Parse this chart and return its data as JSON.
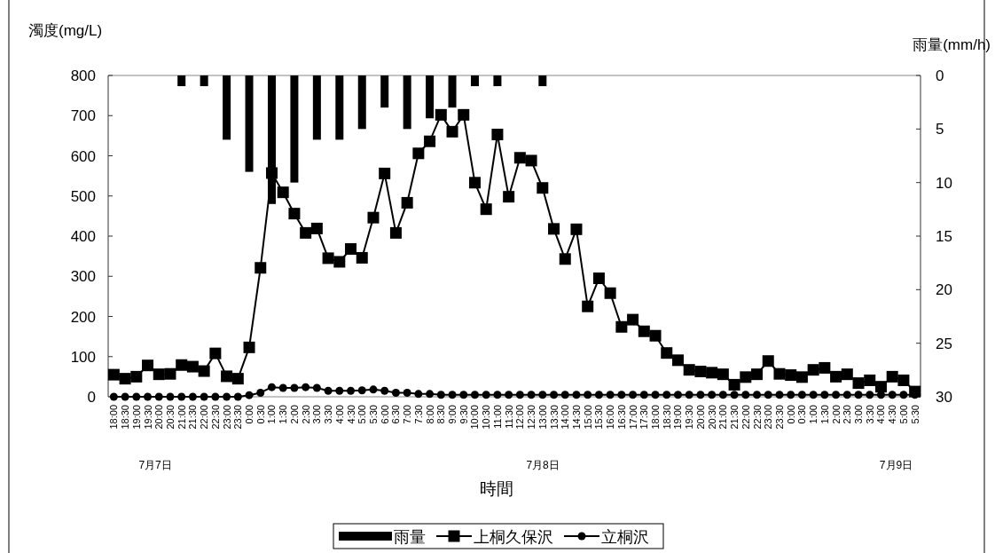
{
  "chart_data": {
    "type": "line",
    "ylabel": "濁度(mg/L)",
    "y2label": "雨量(mm/h)",
    "xlabel": "時間",
    "categories": [
      "18:00",
      "18:30",
      "19:00",
      "19:30",
      "20:00",
      "20:30",
      "21:00",
      "21:30",
      "22:00",
      "22:30",
      "23:00",
      "23:30",
      "0:00",
      "0:30",
      "1:00",
      "1:30",
      "2:00",
      "2:30",
      "3:00",
      "3:30",
      "4:00",
      "4:30",
      "5:00",
      "5:30",
      "6:00",
      "6:30",
      "7:00",
      "7:30",
      "8:00",
      "8:30",
      "9:00",
      "9:30",
      "10:00",
      "10:30",
      "11:00",
      "11:30",
      "12:00",
      "12:30",
      "13:00",
      "13:30",
      "14:00",
      "14:30",
      "15:00",
      "15:30",
      "16:00",
      "16:30",
      "17:00",
      "17:30",
      "18:00",
      "18:30",
      "19:00",
      "19:30",
      "20:00",
      "20:30",
      "21:00",
      "21:30",
      "22:00",
      "22:30",
      "23:00",
      "23:30",
      "0:00",
      "0:30",
      "1:00",
      "1:30",
      "2:00",
      "2:30",
      "3:00",
      "3:30",
      "4:00",
      "4:30",
      "5:00",
      "5:30"
    ],
    "series": [
      {
        "name": "雨量",
        "type": "bar",
        "axis": "y2",
        "color": "#000000",
        "values": [
          0,
          0,
          0,
          0,
          0,
          0,
          1,
          0,
          1,
          0,
          6,
          0,
          9,
          0,
          12,
          0,
          10,
          0,
          6,
          0,
          6,
          0,
          5,
          0,
          3,
          0,
          5,
          0,
          4,
          0,
          3,
          0,
          1,
          0,
          1,
          0,
          0,
          0,
          1,
          0,
          0,
          0,
          0,
          0,
          0,
          0,
          0,
          0,
          0,
          0,
          0,
          0,
          0,
          0,
          0,
          0,
          0,
          0,
          0,
          0,
          0,
          0,
          0,
          0,
          0,
          0,
          0,
          0,
          0,
          0,
          0,
          0
        ]
      },
      {
        "name": "上桐久保沢",
        "marker": "square",
        "color": "#000000",
        "values": [
          55,
          45,
          50,
          78,
          56,
          57,
          79,
          75,
          64,
          108,
          51,
          45,
          123,
          321,
          557,
          509,
          456,
          408,
          419,
          345,
          336,
          368,
          346,
          446,
          556,
          408,
          483,
          606,
          636,
          702,
          660,
          702,
          533,
          467,
          653,
          498,
          595,
          588,
          520,
          418,
          343,
          417,
          225,
          295,
          258,
          174,
          192,
          163,
          152,
          109,
          91,
          67,
          63,
          60,
          56,
          30,
          49,
          56,
          89,
          57,
          54,
          49,
          67,
          72,
          50,
          56,
          34,
          41,
          25,
          50,
          41,
          13
        ]
      },
      {
        "name": "立桐沢",
        "marker": "circle",
        "color": "#000000",
        "values": [
          0,
          0,
          0,
          0,
          0,
          0,
          0,
          0,
          0,
          0,
          0,
          0,
          4,
          10,
          24,
          22,
          22,
          24,
          22,
          15,
          15,
          15,
          16,
          18,
          15,
          10,
          10,
          7,
          7,
          5,
          5,
          5,
          5,
          5,
          5,
          5,
          5,
          5,
          5,
          5,
          5,
          5,
          5,
          5,
          5,
          5,
          5,
          5,
          5,
          5,
          5,
          5,
          5,
          5,
          5,
          5,
          5,
          5,
          5,
          5,
          5,
          5,
          5,
          5,
          5,
          5,
          5,
          5,
          5,
          5,
          5,
          5
        ]
      }
    ],
    "ylim": [
      0,
      800
    ],
    "yticks": [
      0,
      100,
      200,
      300,
      400,
      500,
      600,
      700,
      800
    ],
    "y2lim": [
      30,
      0
    ],
    "y2ticks": [
      0,
      5,
      10,
      15,
      20,
      25,
      30
    ],
    "annotations": [
      "7月7日",
      "7月8日",
      "7月9日"
    ],
    "grid": false,
    "legend": "bottom",
    "line_style": "solid"
  }
}
